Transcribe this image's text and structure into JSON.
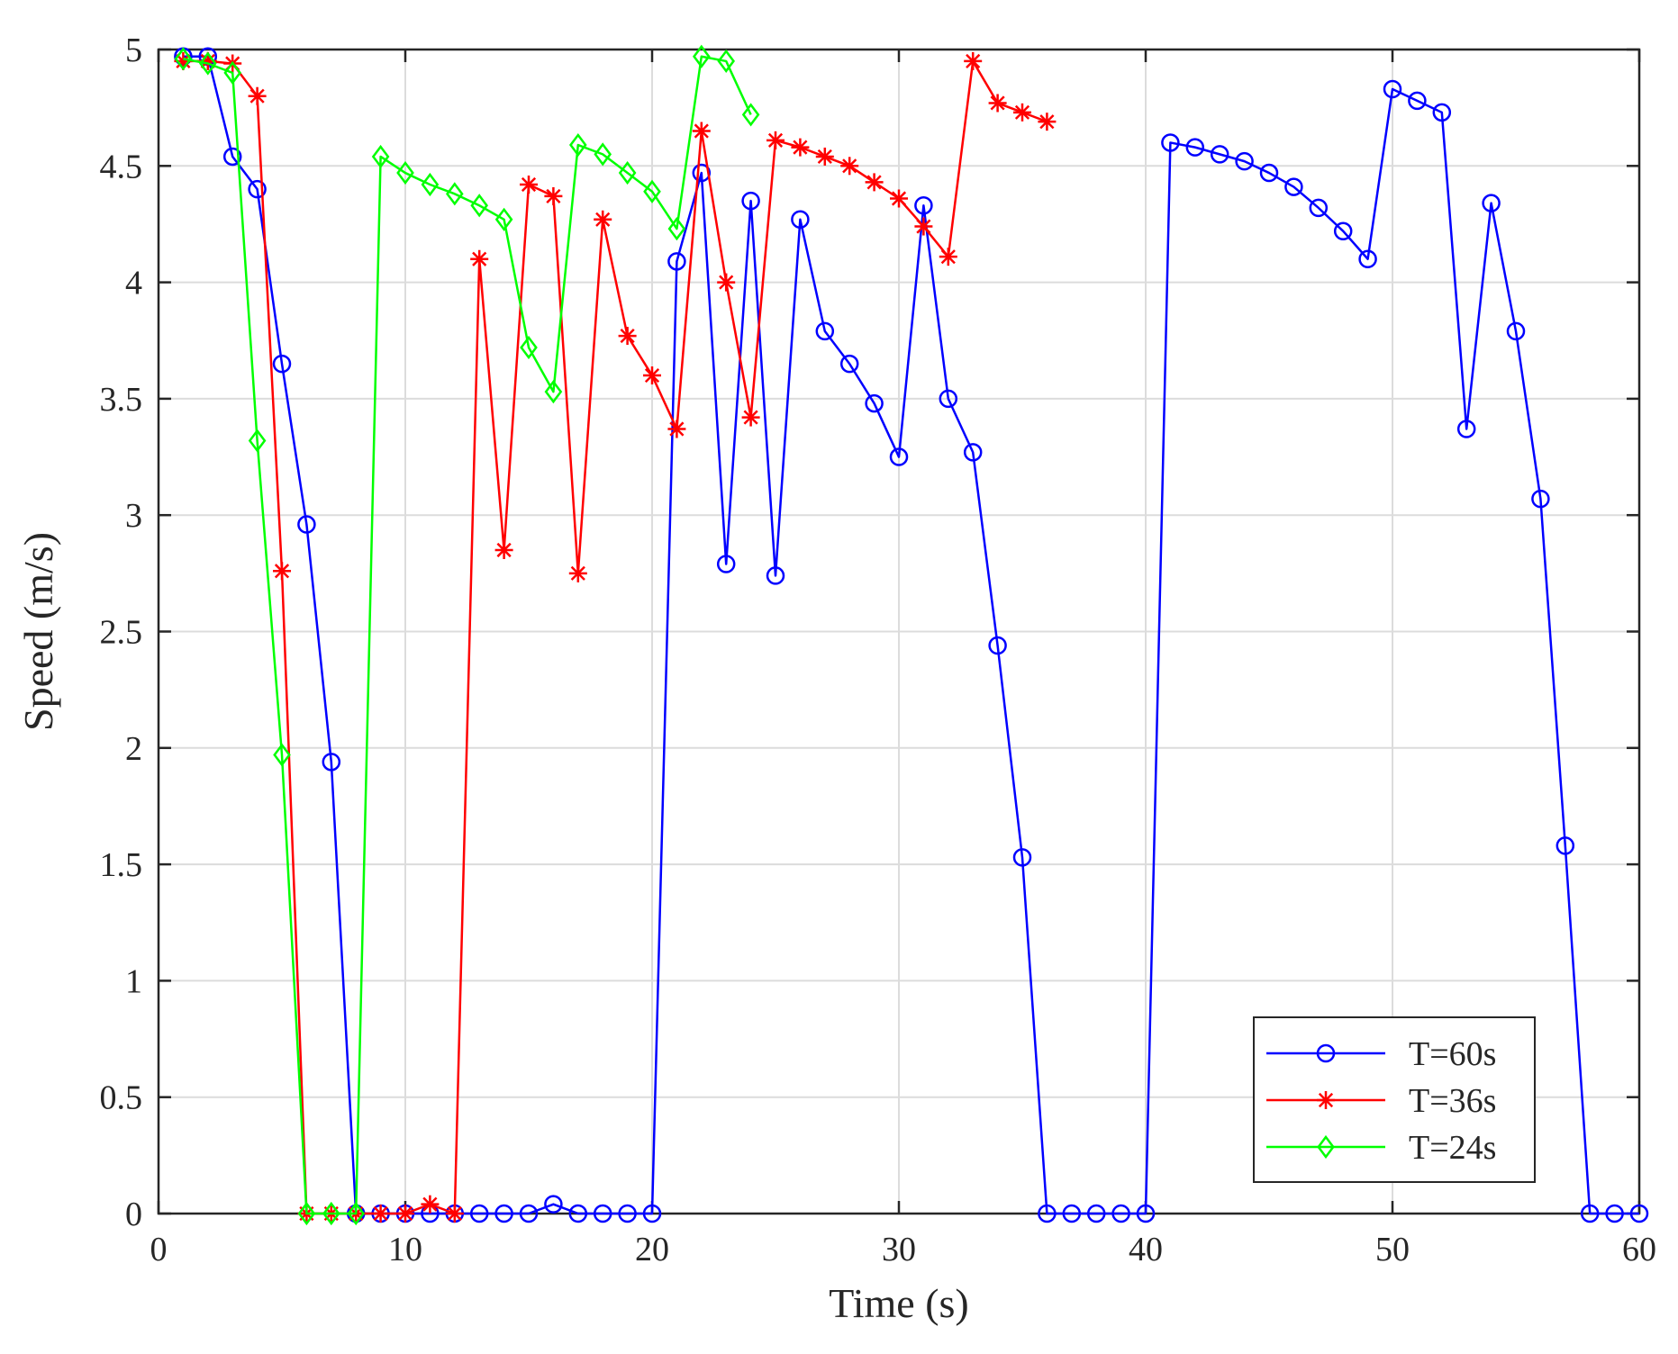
{
  "chart_data": {
    "type": "line",
    "title": "",
    "xlabel": "Time (s)",
    "ylabel": "Speed (m/s)",
    "xlim": [
      0,
      60
    ],
    "ylim": [
      0,
      5
    ],
    "xticks": [
      0,
      10,
      20,
      30,
      40,
      50,
      60
    ],
    "yticks": [
      0,
      0.5,
      1,
      1.5,
      2,
      2.5,
      3,
      3.5,
      4,
      4.5,
      5
    ],
    "xtick_labels": [
      "0",
      "10",
      "20",
      "30",
      "40",
      "50",
      "60"
    ],
    "ytick_labels": [
      "0",
      "0.5",
      "1",
      "1.5",
      "2",
      "2.5",
      "3",
      "3.5",
      "4",
      "4.5",
      "5"
    ],
    "grid": true,
    "legend_position": "bottom-right",
    "series": [
      {
        "name": "T=60s",
        "color": "#0000ff",
        "marker": "circle",
        "x": [
          1,
          2,
          3,
          4,
          5,
          6,
          7,
          8,
          9,
          10,
          11,
          12,
          13,
          14,
          15,
          16,
          17,
          18,
          19,
          20,
          21,
          22,
          23,
          24,
          25,
          26,
          27,
          28,
          29,
          30,
          31,
          32,
          33,
          34,
          35,
          36,
          37,
          38,
          39,
          40,
          41,
          42,
          43,
          44,
          45,
          46,
          47,
          48,
          49,
          50,
          51,
          52,
          53,
          54,
          55,
          56,
          57,
          58,
          59,
          60
        ],
        "y": [
          4.97,
          4.97,
          4.54,
          4.4,
          3.65,
          2.96,
          1.94,
          0,
          0,
          0,
          0,
          0,
          0,
          0,
          0,
          0.04,
          0,
          0,
          0,
          0,
          4.09,
          4.47,
          2.79,
          4.35,
          2.74,
          4.27,
          3.79,
          3.65,
          3.48,
          3.25,
          4.33,
          3.5,
          3.27,
          2.44,
          1.53,
          0,
          0,
          0,
          0,
          0,
          4.6,
          4.58,
          4.55,
          4.52,
          4.47,
          4.41,
          4.32,
          4.22,
          4.1,
          4.83,
          4.78,
          4.73,
          3.37,
          4.34,
          3.79,
          3.07,
          1.58,
          0,
          0,
          0
        ]
      },
      {
        "name": "T=36s",
        "color": "#ff0000",
        "marker": "star",
        "x": [
          1,
          2,
          3,
          4,
          5,
          6,
          7,
          8,
          9,
          10,
          11,
          12,
          13,
          14,
          15,
          16,
          17,
          18,
          19,
          20,
          21,
          22,
          23,
          24,
          25,
          26,
          27,
          28,
          29,
          30,
          31,
          32,
          33,
          34,
          35,
          36
        ],
        "y": [
          4.95,
          4.95,
          4.94,
          4.8,
          2.76,
          0,
          0,
          0,
          0,
          0,
          0.04,
          0,
          4.1,
          2.85,
          4.42,
          4.37,
          2.75,
          4.27,
          3.77,
          3.6,
          3.37,
          4.65,
          4.0,
          3.42,
          4.61,
          4.58,
          4.54,
          4.5,
          4.43,
          4.36,
          4.24,
          4.11,
          4.95,
          4.77,
          4.73,
          4.69
        ]
      },
      {
        "name": "T=24s",
        "color": "#00ff00",
        "marker": "diamond",
        "x": [
          1,
          2,
          3,
          4,
          5,
          6,
          7,
          8,
          9,
          10,
          11,
          12,
          13,
          14,
          15,
          16,
          17,
          18,
          19,
          20,
          21,
          22,
          23,
          24
        ],
        "y": [
          4.96,
          4.94,
          4.9,
          3.32,
          1.97,
          0,
          0,
          0,
          4.54,
          4.47,
          4.42,
          4.38,
          4.33,
          4.27,
          3.72,
          3.53,
          4.59,
          4.55,
          4.47,
          4.39,
          4.23,
          4.97,
          4.95,
          4.72
        ]
      }
    ]
  }
}
